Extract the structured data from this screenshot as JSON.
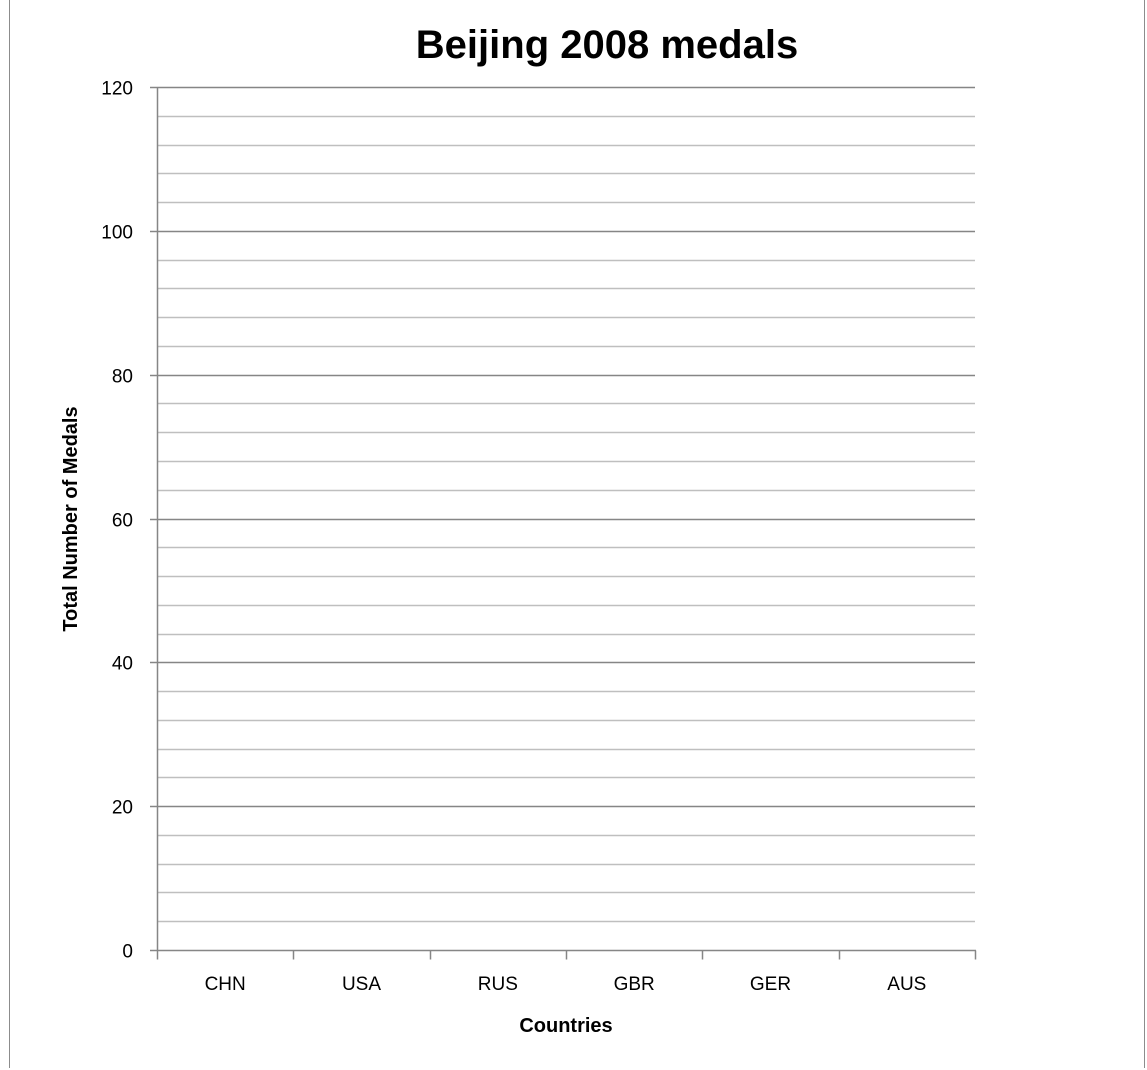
{
  "chart_data": {
    "type": "bar",
    "title": "Beijing 2008 medals",
    "xlabel": "Countries",
    "ylabel": "Total Number of Medals",
    "categories": [
      "CHN",
      "USA",
      "RUS",
      "GBR",
      "GER",
      "AUS"
    ],
    "series": [],
    "ylim": [
      0,
      120
    ],
    "major_ticks": [
      0,
      20,
      40,
      60,
      80,
      100,
      120
    ],
    "minor_step": 4,
    "grid": true,
    "legend": "none",
    "colors": {
      "major_grid": "#868686",
      "minor_grid": "#bfbfbf",
      "axis": "#868686"
    }
  }
}
